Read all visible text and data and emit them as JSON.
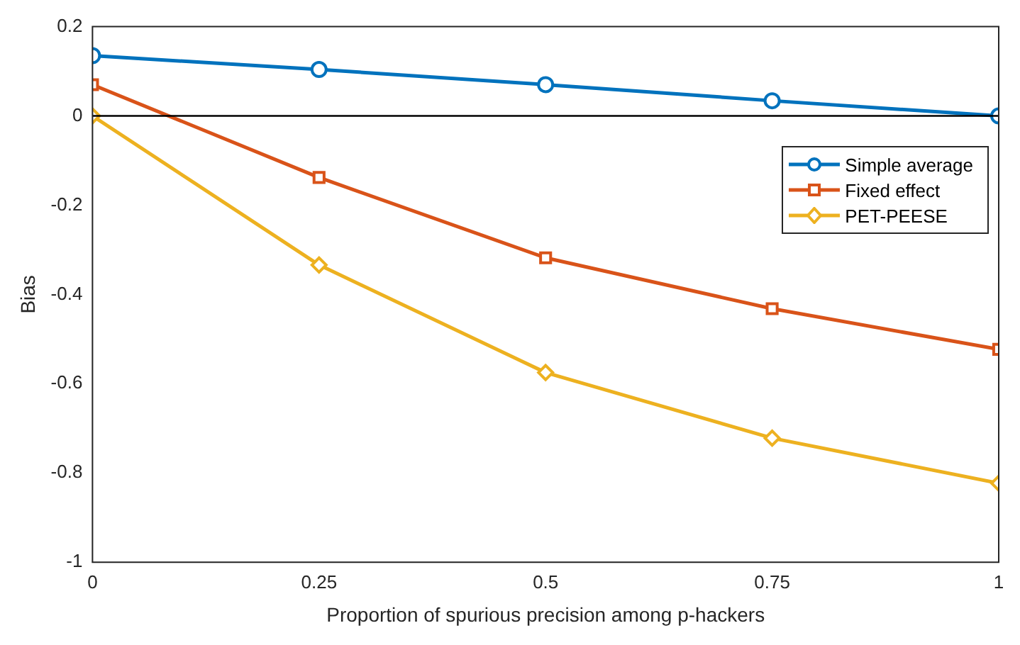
{
  "chart_data": {
    "type": "line",
    "xlabel": "Proportion of spurious precision among p-hackers",
    "ylabel": "Bias",
    "x": [
      0,
      0.25,
      0.5,
      0.75,
      1
    ],
    "series": [
      {
        "name": "Simple average",
        "color": "#0072bd",
        "marker": "circle",
        "values": [
          0.135,
          0.104,
          0.07,
          0.034,
          0
        ]
      },
      {
        "name": "Fixed effect",
        "color": "#d95319",
        "marker": "square",
        "values": [
          0.07,
          -0.138,
          -0.318,
          -0.432,
          -0.523
        ]
      },
      {
        "name": "PET-PEESE",
        "color": "#edb120",
        "marker": "diamond",
        "values": [
          0,
          -0.334,
          -0.575,
          -0.722,
          -0.823
        ]
      }
    ],
    "xlim": [
      0,
      1
    ],
    "xticks": [
      0,
      0.25,
      0.5,
      0.75,
      1
    ],
    "ylim": [
      -1,
      0.2
    ],
    "yticks": [
      -1,
      -0.8,
      -0.6,
      -0.4,
      -0.2,
      0,
      0.2
    ],
    "ref_lines": [
      {
        "axis": "y",
        "value": 0,
        "color": "#000000"
      }
    ],
    "grid": false,
    "legend": "top right",
    "line_style": "solid"
  }
}
